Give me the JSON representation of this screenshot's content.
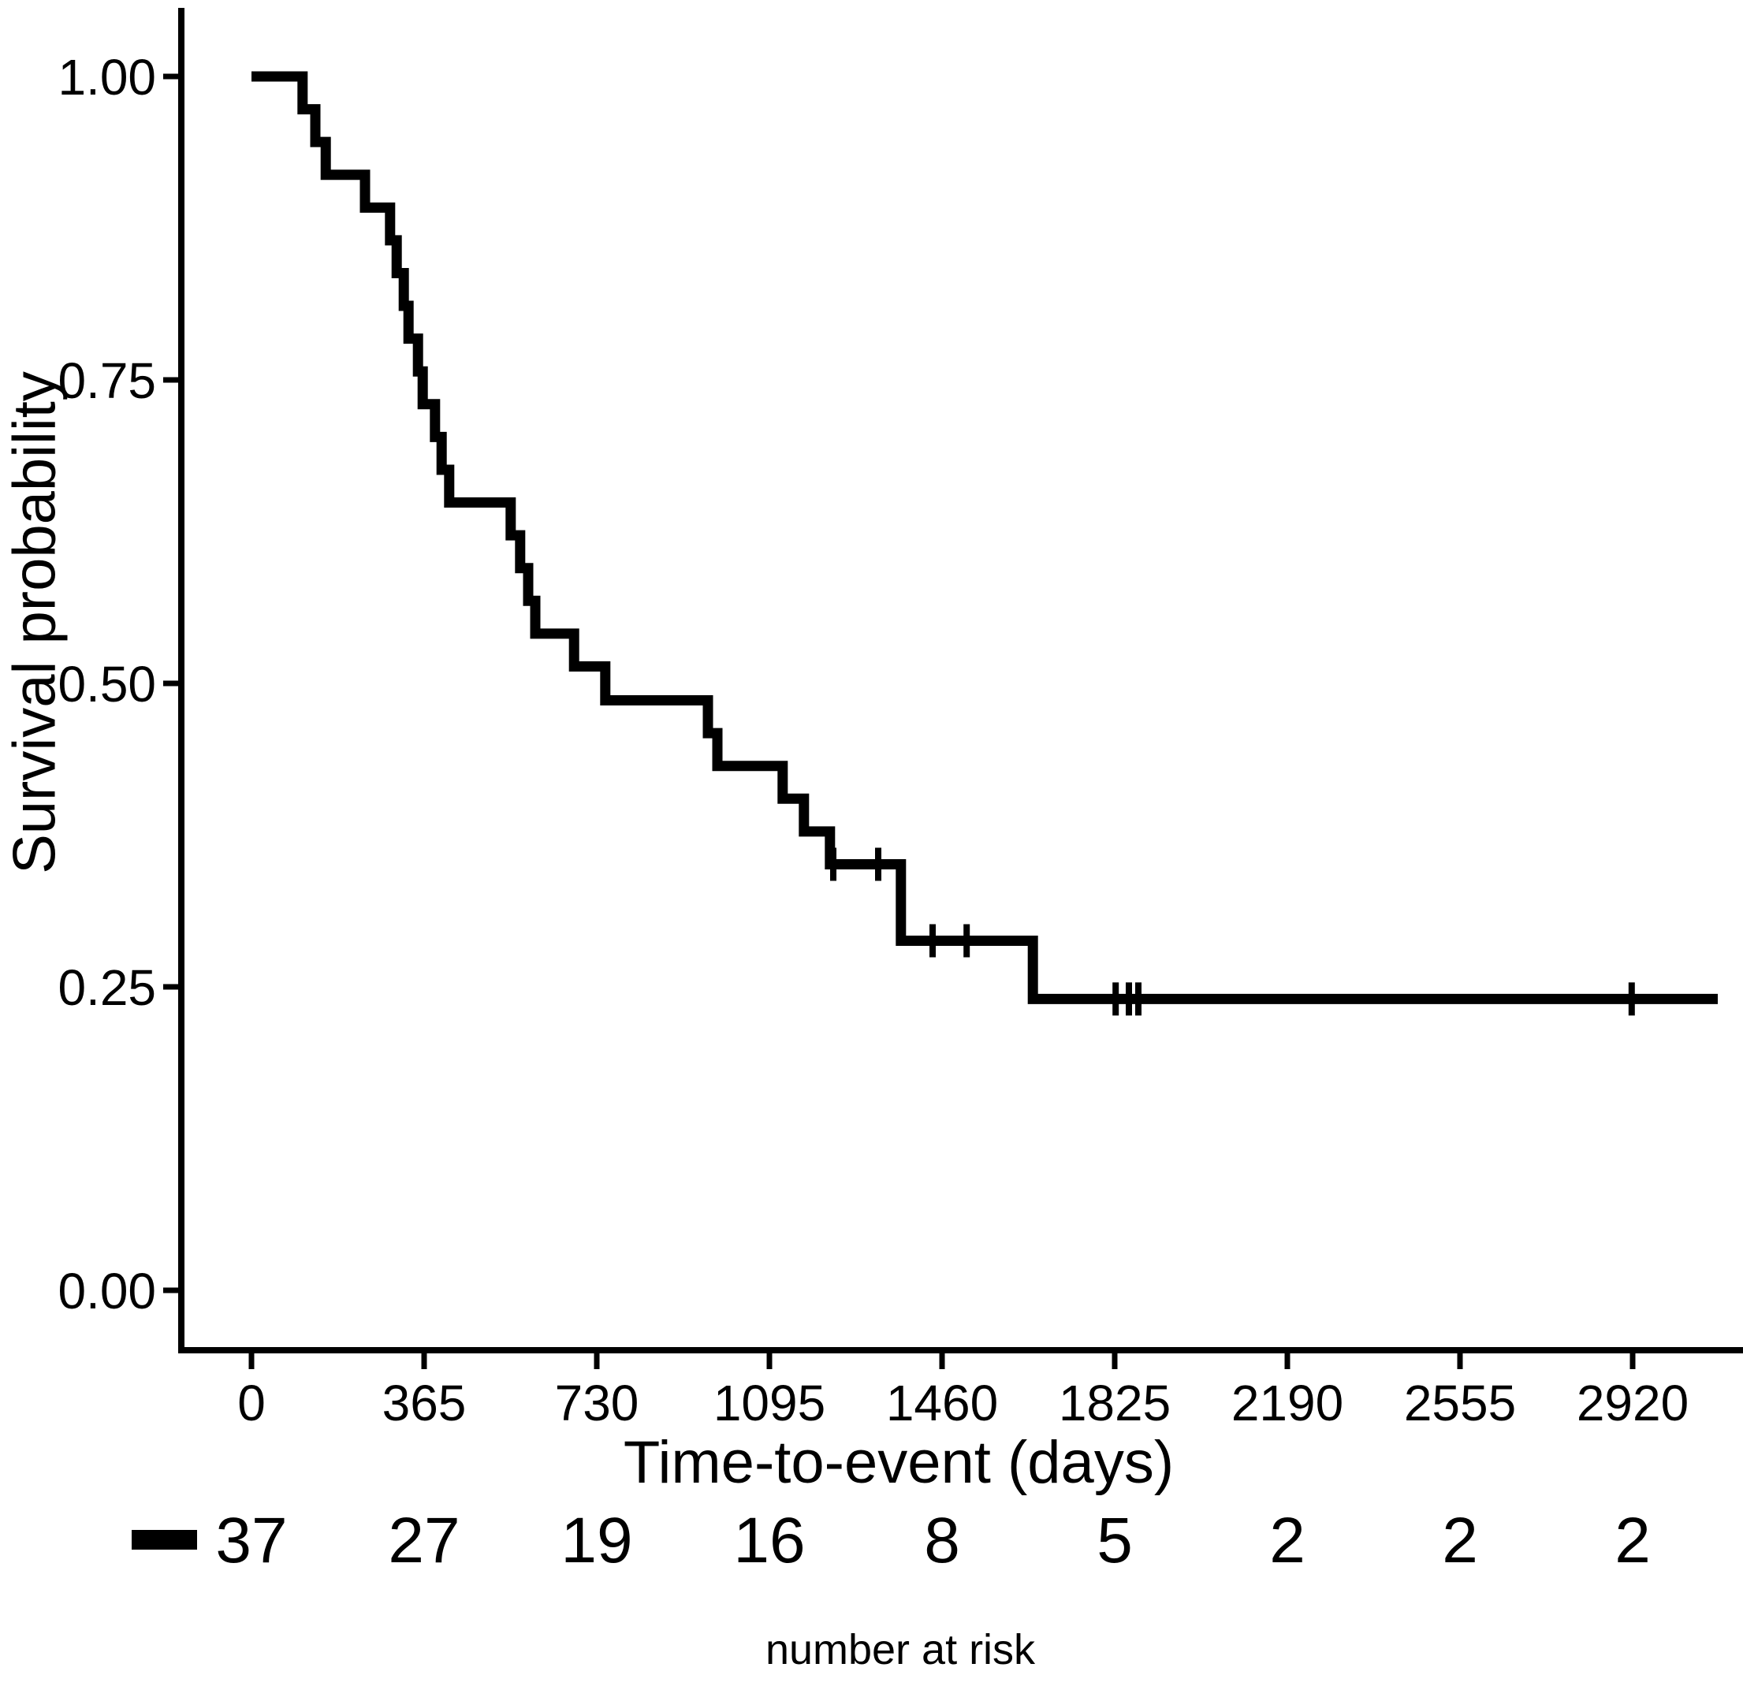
{
  "chart_data": {
    "type": "line",
    "subtype": "kaplan-meier-step",
    "title": "",
    "xlabel": "Time-to-event (days)",
    "ylabel": "Survival probability",
    "x_ticks": [
      {
        "v": 0,
        "label": "0"
      },
      {
        "v": 365,
        "label": "365"
      },
      {
        "v": 730,
        "label": "730"
      },
      {
        "v": 1095,
        "label": "1095"
      },
      {
        "v": 1460,
        "label": "1460"
      },
      {
        "v": 1825,
        "label": "1825"
      },
      {
        "v": 2190,
        "label": "2190"
      },
      {
        "v": 2555,
        "label": "2555"
      },
      {
        "v": 2920,
        "label": "2920"
      }
    ],
    "y_ticks": [
      {
        "v": 0.0,
        "label": "0.00"
      },
      {
        "v": 0.25,
        "label": "0.25"
      },
      {
        "v": 0.5,
        "label": "0.50"
      },
      {
        "v": 0.75,
        "label": "0.75"
      },
      {
        "v": 1.0,
        "label": "1.00"
      }
    ],
    "xlim": [
      -150,
      3155
    ],
    "ylim": [
      -0.05,
      1.055
    ],
    "grid": false,
    "line_color": "#000000",
    "steps": [
      [
        0,
        1.0
      ],
      [
        108,
        0.973
      ],
      [
        135,
        0.946
      ],
      [
        157,
        0.919
      ],
      [
        240,
        0.892
      ],
      [
        293,
        0.865
      ],
      [
        307,
        0.838
      ],
      [
        322,
        0.811
      ],
      [
        332,
        0.784
      ],
      [
        352,
        0.757
      ],
      [
        362,
        0.73
      ],
      [
        388,
        0.703
      ],
      [
        402,
        0.676
      ],
      [
        418,
        0.649
      ],
      [
        548,
        0.622
      ],
      [
        568,
        0.595
      ],
      [
        585,
        0.568
      ],
      [
        600,
        0.541
      ],
      [
        682,
        0.514
      ],
      [
        748,
        0.486
      ],
      [
        965,
        0.459
      ],
      [
        985,
        0.432
      ],
      [
        1123,
        0.405
      ],
      [
        1168,
        0.378
      ],
      [
        1223,
        0.351
      ],
      [
        1373,
        0.288
      ],
      [
        1652,
        0.24
      ]
    ],
    "end_time": 3100,
    "censor_marks": [
      [
        1230,
        0.351
      ],
      [
        1325,
        0.351
      ],
      [
        1440,
        0.288
      ],
      [
        1512,
        0.288
      ],
      [
        1827,
        0.24
      ],
      [
        1855,
        0.24
      ],
      [
        1875,
        0.24
      ],
      [
        2918,
        0.24
      ]
    ],
    "risk_table": {
      "caption": "number at risk",
      "times": [
        0,
        365,
        730,
        1095,
        1460,
        1825,
        2190,
        2555,
        2920
      ],
      "values": [
        "37",
        "27",
        "19",
        "16",
        "8",
        "5",
        "2",
        "2",
        "2"
      ],
      "legend_glyph": "dash"
    }
  }
}
